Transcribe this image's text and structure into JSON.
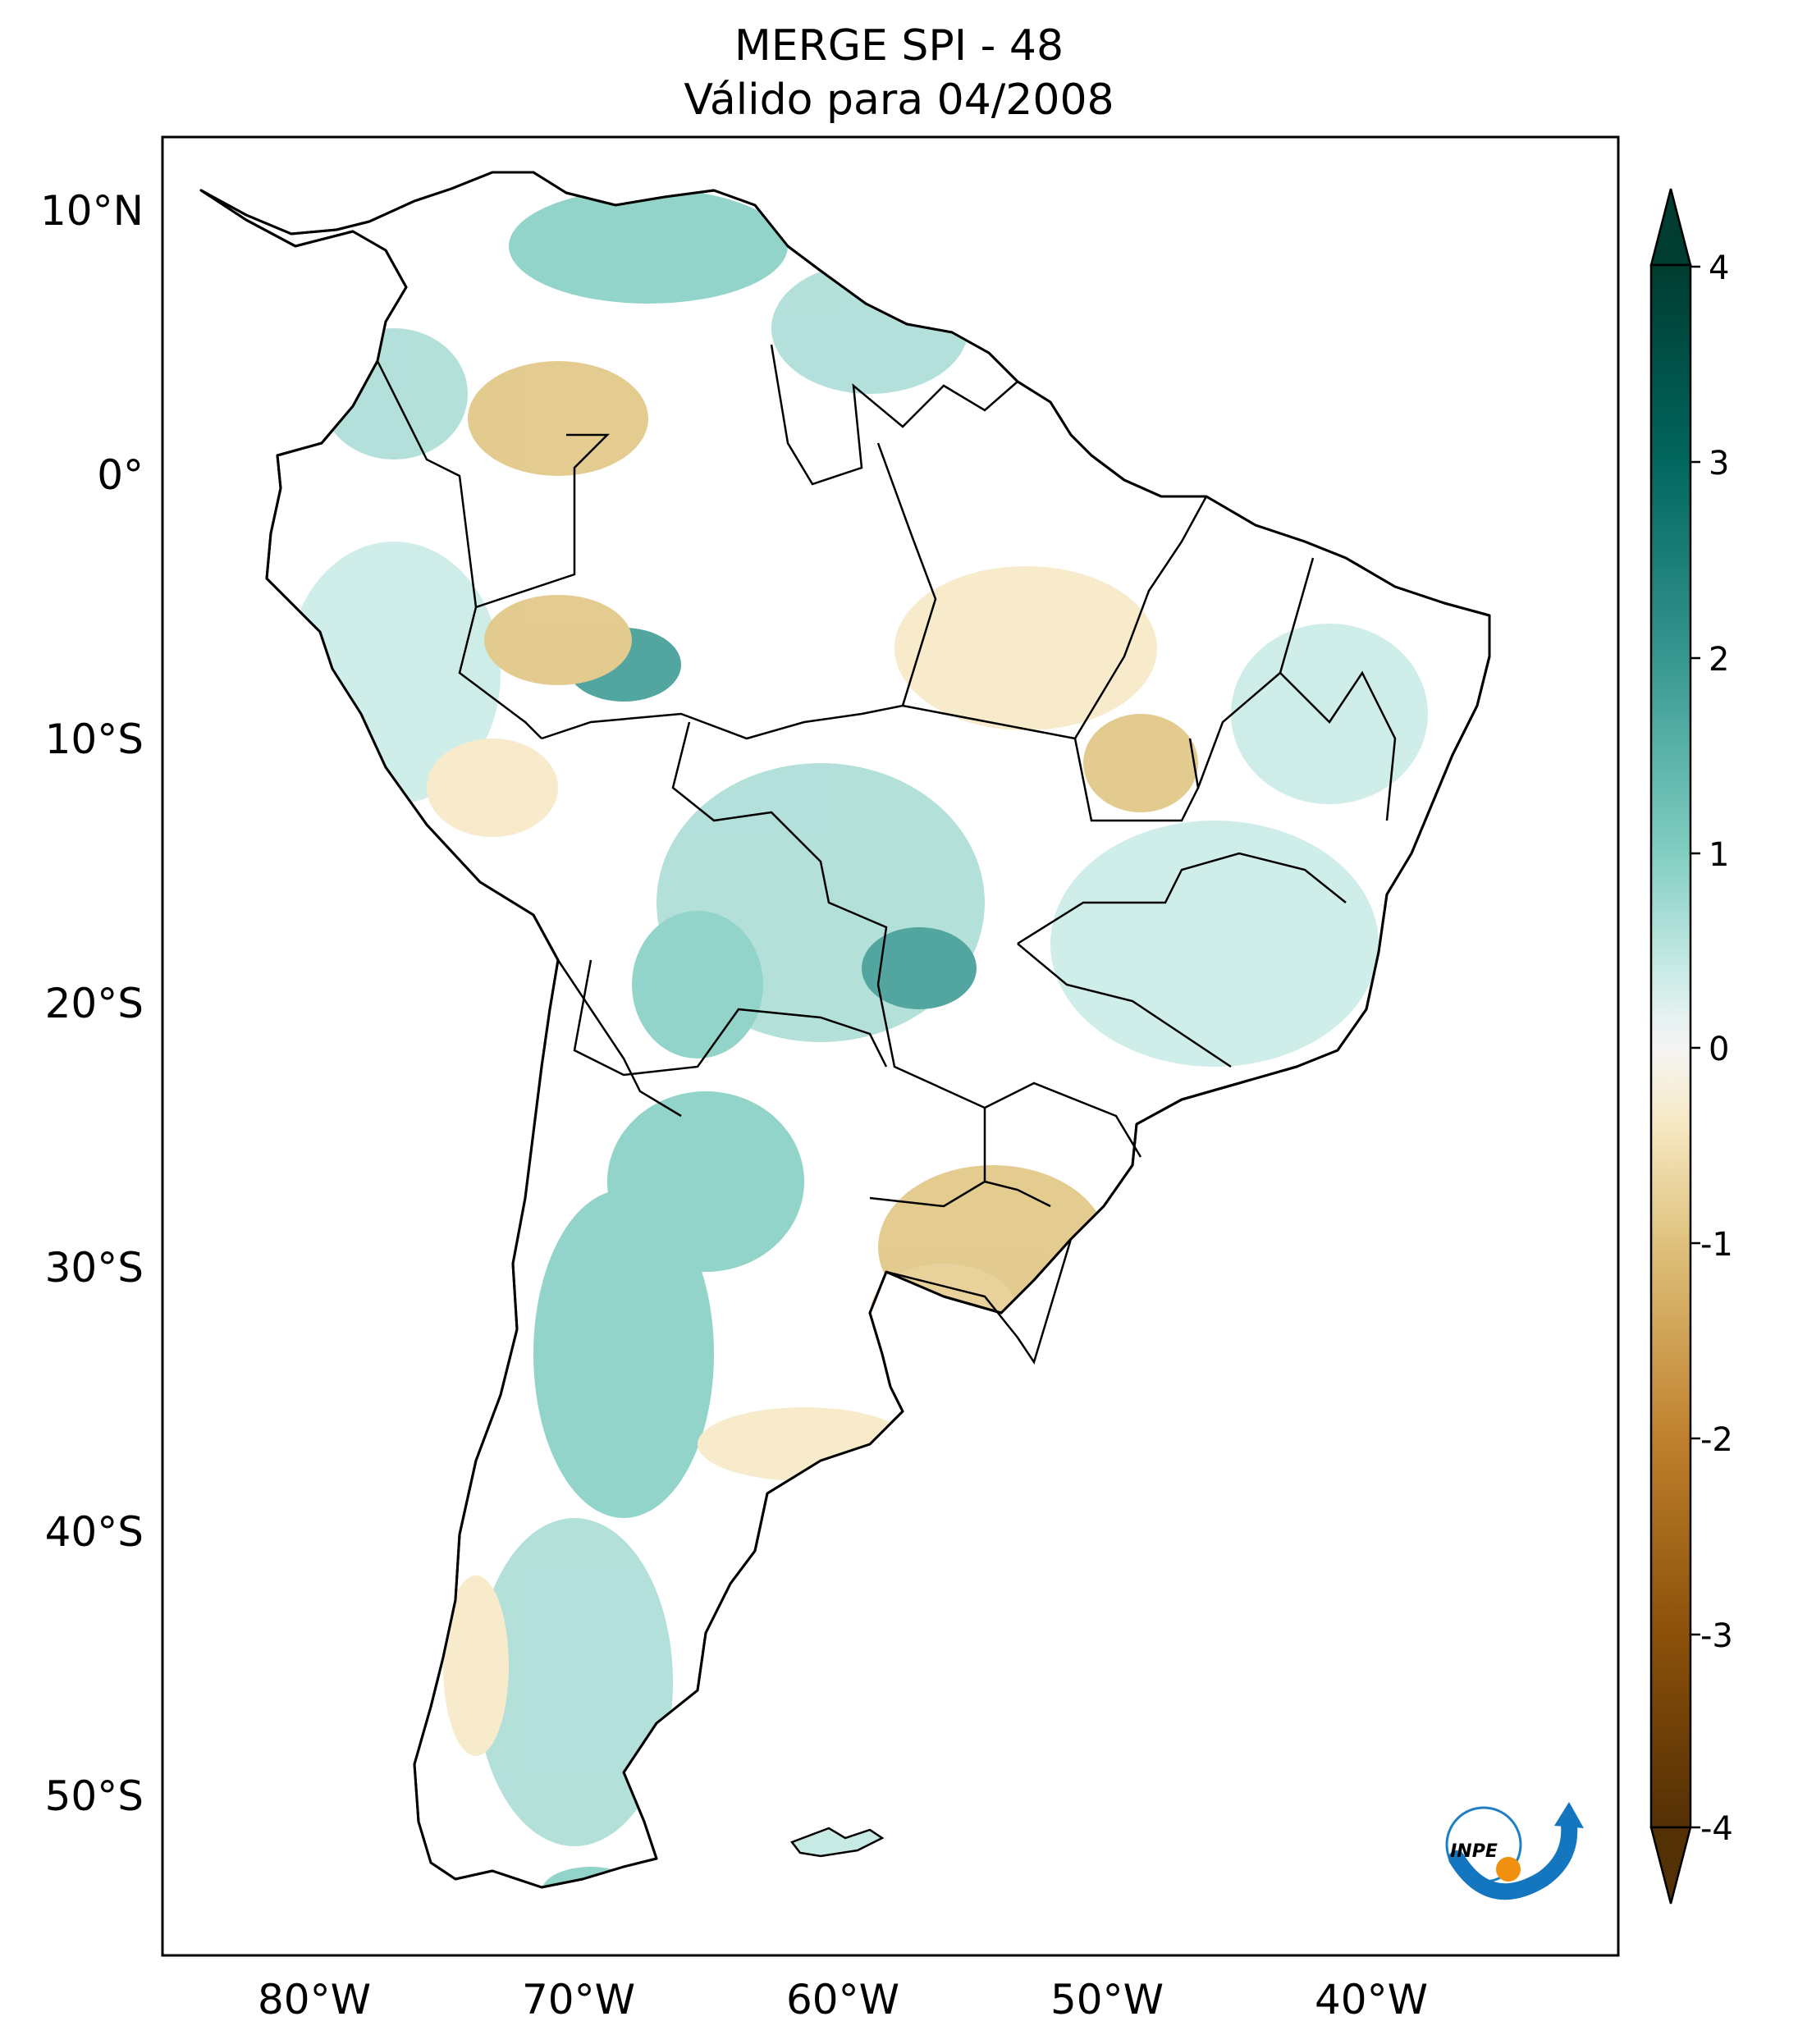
{
  "title": {
    "line1": "MERGE   SPI - 48",
    "line2": "Válido para 04/2008"
  },
  "map": {
    "lat_labels": [
      "10°N",
      "0°",
      "10°S",
      "20°S",
      "30°S",
      "40°S",
      "50°S"
    ],
    "lon_labels": [
      "80°W",
      "70°W",
      "60°W",
      "50°W",
      "40°W"
    ]
  },
  "colorbar": {
    "ticks": [
      "4",
      "3",
      "2",
      "1",
      "0",
      "-1",
      "-2",
      "-3",
      "-4"
    ],
    "colors": {
      "wet_extreme": "#003c30",
      "wet_strong": "#01665e",
      "wet_moderate": "#35978f",
      "wet_mild": "#80cdc1",
      "wet_light": "#c7eae5",
      "neutral": "#f5f5f5",
      "dry_light": "#f6e8c3",
      "dry_mild": "#dfc27d",
      "dry_moderate": "#bf812d",
      "dry_strong": "#8c510a",
      "dry_extreme": "#543005"
    }
  },
  "logo": {
    "text": "INPE",
    "icon": "inpe-logo-icon"
  }
}
